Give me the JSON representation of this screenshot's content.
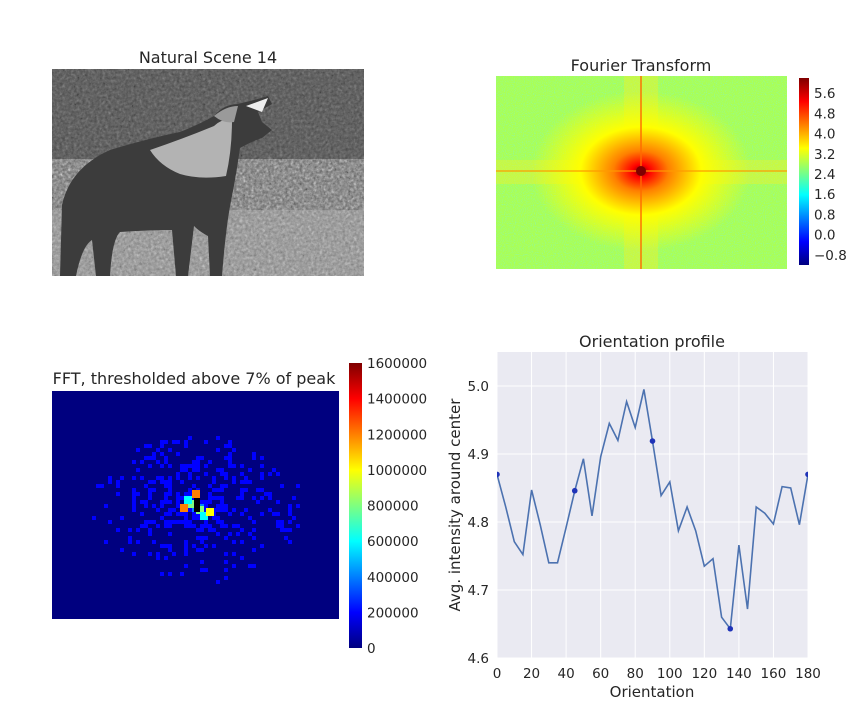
{
  "colors": {
    "axes_bg": "#eaeaf2",
    "grid": "#ffffff",
    "line": "#4c72b0",
    "marker": "#1f33b8",
    "jet": [
      "#00007f",
      "#0000ff",
      "#007fff",
      "#00ffff",
      "#7fff7f",
      "#ffff00",
      "#ff7f00",
      "#ff0000",
      "#7f0000"
    ]
  },
  "chart_data": [
    {
      "type": "image",
      "title": "Natural Scene 14",
      "content": "grayscale photograph of a howling coyote",
      "colormap": "gray"
    },
    {
      "type": "heatmap",
      "title": "Fourier Transform",
      "colormap": "jet",
      "colorbar": {
        "min": -1.2,
        "max": 6.2,
        "ticks": [
          -0.8,
          0.0,
          0.8,
          1.6,
          2.4,
          3.2,
          4.0,
          4.8,
          5.6
        ],
        "tick_labels": [
          "−0.8",
          "0.0",
          "0.8",
          "1.6",
          "2.4",
          "3.2",
          "4.0",
          "4.8",
          "5.6"
        ]
      }
    },
    {
      "type": "heatmap",
      "title": "FFT, thresholded above 7% of peak",
      "colormap": "jet",
      "colorbar": {
        "min": 0,
        "max": 1600000,
        "ticks": [
          0,
          200000,
          400000,
          600000,
          800000,
          1000000,
          1200000,
          1400000,
          1600000
        ],
        "tick_labels": [
          "0",
          "200000",
          "400000",
          "600000",
          "800000",
          "1000000",
          "1200000",
          "1400000",
          "1600000"
        ]
      }
    },
    {
      "type": "line",
      "title": "Orientation profile",
      "xlabel": "Orientation",
      "ylabel": "Avg. intensity around center",
      "xlim": [
        0,
        180
      ],
      "ylim": [
        4.6,
        5.05
      ],
      "xticks": [
        0,
        20,
        40,
        60,
        80,
        100,
        120,
        140,
        160,
        180
      ],
      "xtick_labels": [
        "0",
        "20",
        "40",
        "60",
        "80",
        "100",
        "120",
        "140",
        "160",
        "180"
      ],
      "yticks": [
        4.6,
        4.7,
        4.8,
        4.9,
        5.0
      ],
      "ytick_labels": [
        "4.6",
        "4.7",
        "4.8",
        "4.9",
        "5.0"
      ],
      "grid": true,
      "series": [
        {
          "x": [
            0,
            5,
            10,
            15,
            20,
            25,
            30,
            35,
            40,
            45,
            50,
            55,
            60,
            65,
            70,
            75,
            80,
            85,
            90,
            95,
            100,
            105,
            110,
            115,
            120,
            125,
            130,
            135,
            140,
            145,
            150,
            155,
            160,
            165,
            170,
            175,
            180
          ],
          "y": [
            4.87,
            4.823,
            4.771,
            4.752,
            4.847,
            4.796,
            4.74,
            4.74,
            4.792,
            4.846,
            4.893,
            4.809,
            4.896,
            4.945,
            4.92,
            4.977,
            4.939,
            4.995,
            4.919,
            4.839,
            4.859,
            4.787,
            4.822,
            4.787,
            4.735,
            4.746,
            4.66,
            4.643,
            4.766,
            4.672,
            4.822,
            4.813,
            4.797,
            4.852,
            4.85,
            4.796,
            4.87
          ]
        }
      ],
      "markers": {
        "x": [
          0,
          45,
          90,
          135,
          180
        ],
        "y": [
          4.87,
          4.846,
          4.919,
          4.643,
          4.87
        ]
      }
    }
  ]
}
